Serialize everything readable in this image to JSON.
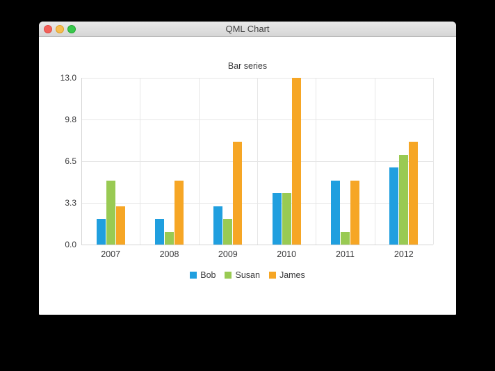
{
  "window": {
    "title": "QML Chart",
    "traffic_lights": [
      {
        "name": "close-button",
        "color": "#f2605a",
        "border": "#e14942"
      },
      {
        "name": "minimize-button",
        "color": "#f6bd50",
        "border": "#dfa023"
      },
      {
        "name": "zoom-button",
        "color": "#38c84c",
        "border": "#24a732"
      }
    ]
  },
  "chart_data": {
    "type": "bar",
    "title": "Bar series",
    "categories": [
      "2007",
      "2008",
      "2009",
      "2010",
      "2011",
      "2012"
    ],
    "series": [
      {
        "name": "Bob",
        "color": "#209fdf",
        "values": [
          2,
          2,
          3,
          4,
          5,
          6
        ]
      },
      {
        "name": "Susan",
        "color": "#99ca53",
        "values": [
          5,
          1,
          2,
          4,
          1,
          7
        ]
      },
      {
        "name": "James",
        "color": "#f6a625",
        "values": [
          3,
          5,
          8,
          13,
          5,
          8
        ]
      }
    ],
    "y_tick_labels": [
      "0.0",
      "3.3",
      "6.5",
      "9.8",
      "13.0"
    ],
    "ylim": [
      0,
      13
    ],
    "grid": true,
    "legend_position": "bottom"
  }
}
